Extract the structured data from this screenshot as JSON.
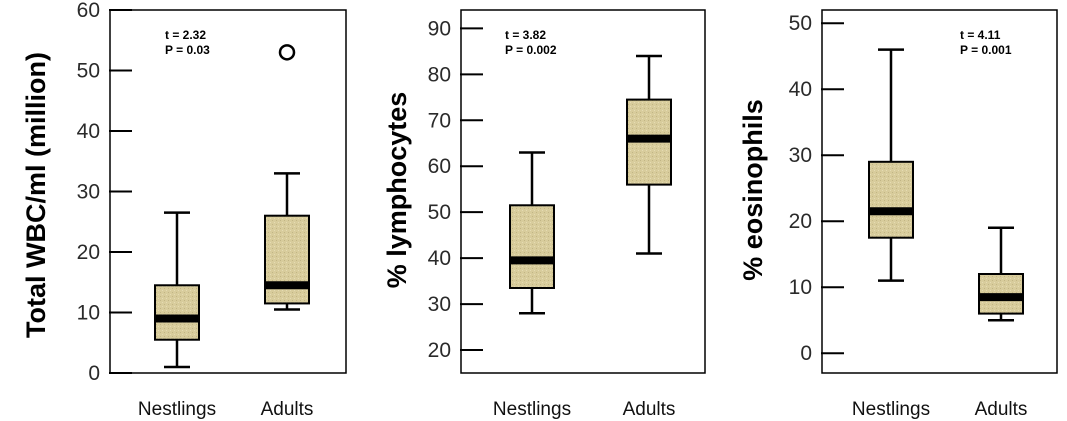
{
  "chart_data": [
    {
      "type": "box",
      "ylabel": "Total WBC/ml (million)",
      "ylim": [
        0,
        60
      ],
      "yticks": [
        0,
        10,
        20,
        30,
        40,
        50,
        60
      ],
      "categories": [
        "Nestlings",
        "Adults"
      ],
      "boxes": [
        {
          "category": "Nestlings",
          "min": 1,
          "q1": 5.5,
          "median": 9,
          "q3": 14.5,
          "max": 26.5,
          "outliers": []
        },
        {
          "category": "Adults",
          "min": 10.5,
          "q1": 11.5,
          "median": 14.5,
          "q3": 26,
          "max": 33,
          "outliers": [
            53
          ]
        }
      ],
      "annotation": {
        "t": "t = 2.32",
        "p": "P = 0.03"
      }
    },
    {
      "type": "box",
      "ylabel": "% lymphocytes",
      "ylim": [
        15,
        94
      ],
      "yticks": [
        20,
        30,
        40,
        50,
        60,
        70,
        80,
        90
      ],
      "categories": [
        "Nestlings",
        "Adults"
      ],
      "boxes": [
        {
          "category": "Nestlings",
          "min": 28,
          "q1": 33.5,
          "median": 39.5,
          "q3": 51.5,
          "max": 63,
          "outliers": []
        },
        {
          "category": "Adults",
          "min": 41,
          "q1": 56,
          "median": 66,
          "q3": 74.5,
          "max": 84,
          "outliers": []
        }
      ],
      "annotation": {
        "t": "t = 3.82",
        "p": "P = 0.002"
      }
    },
    {
      "type": "box",
      "ylabel": "% eosinophils",
      "ylim": [
        -3,
        52
      ],
      "yticks": [
        0,
        10,
        20,
        30,
        40,
        50
      ],
      "categories": [
        "Nestlings",
        "Adults"
      ],
      "boxes": [
        {
          "category": "Nestlings",
          "min": 11,
          "q1": 17.5,
          "median": 21.5,
          "q3": 29,
          "max": 46,
          "outliers": []
        },
        {
          "category": "Adults",
          "min": 5,
          "q1": 6,
          "median": 8.5,
          "q3": 12,
          "max": 19,
          "outliers": []
        }
      ],
      "annotation": {
        "t": "t = 4.11",
        "p": "P = 0.001"
      }
    }
  ],
  "style": {
    "box_fill": "#d8cc9c",
    "line_color": "#000000",
    "background": "#ffffff"
  }
}
